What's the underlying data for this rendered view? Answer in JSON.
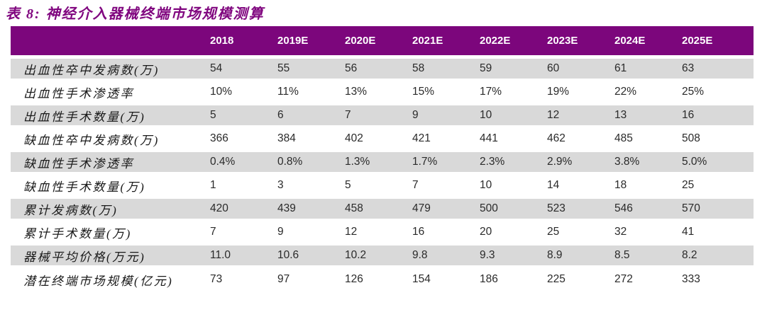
{
  "title": "表 8: 神经介入器械终端市场规模测算",
  "table": {
    "corner_label": "",
    "columns": [
      "2018",
      "2019E",
      "2020E",
      "2021E",
      "2022E",
      "2023E",
      "2024E",
      "2025E"
    ],
    "rows": [
      {
        "label": "出血性卒中发病数(万)",
        "values": [
          "54",
          "55",
          "56",
          "58",
          "59",
          "60",
          "61",
          "63"
        ]
      },
      {
        "label": "出血性手术渗透率",
        "values": [
          "10%",
          "11%",
          "13%",
          "15%",
          "17%",
          "19%",
          "22%",
          "25%"
        ]
      },
      {
        "label": "出血性手术数量(万)",
        "values": [
          "5",
          "6",
          "7",
          "9",
          "10",
          "12",
          "13",
          "16"
        ]
      },
      {
        "label": "缺血性卒中发病数(万)",
        "values": [
          "366",
          "384",
          "402",
          "421",
          "441",
          "462",
          "485",
          "508"
        ]
      },
      {
        "label": "缺血性手术渗透率",
        "values": [
          "0.4%",
          "0.8%",
          "1.3%",
          "1.7%",
          "2.3%",
          "2.9%",
          "3.8%",
          "5.0%"
        ]
      },
      {
        "label": "缺血性手术数量(万)",
        "values": [
          "1",
          "3",
          "5",
          "7",
          "10",
          "14",
          "18",
          "25"
        ]
      },
      {
        "label": "累计发病数(万)",
        "values": [
          "420",
          "439",
          "458",
          "479",
          "500",
          "523",
          "546",
          "570"
        ]
      },
      {
        "label": "累计手术数量(万)",
        "values": [
          "7",
          "9",
          "12",
          "16",
          "20",
          "25",
          "32",
          "41"
        ]
      },
      {
        "label": "器械平均价格(万元)",
        "values": [
          "11.0",
          "10.6",
          "10.2",
          "9.8",
          "9.3",
          "8.9",
          "8.5",
          "8.2"
        ]
      },
      {
        "label": "潜在终端市场规模(亿元)",
        "values": [
          "73",
          "97",
          "126",
          "154",
          "186",
          "225",
          "272",
          "333"
        ]
      }
    ]
  },
  "colors": {
    "header_bg": "#7C067C",
    "title_text": "#80067F",
    "row_alt_bg": "#D9D9D9",
    "value_text": "#2A2A2A",
    "label_text": "#1A1A1A"
  }
}
